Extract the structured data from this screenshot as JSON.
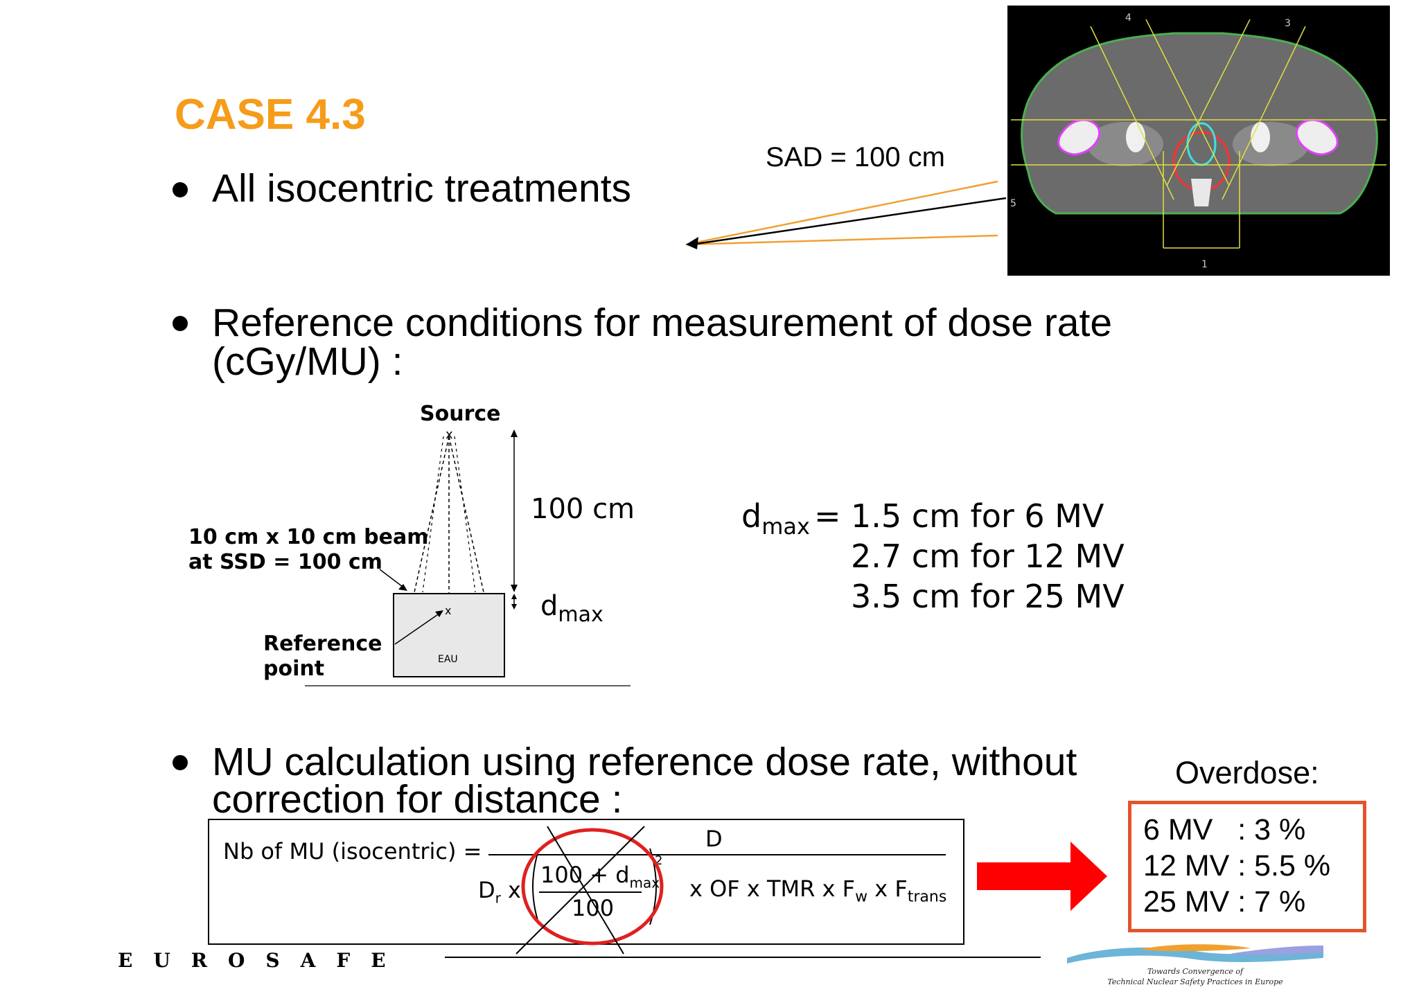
{
  "title": "CASE 4.3",
  "bullets": [
    {
      "line1": "All isocentric treatments",
      "line2": ""
    },
    {
      "line1": "Reference conditions for measurement of dose rate",
      "line2": "(cGy/MU) :"
    },
    {
      "line1": "MU calculation using reference dose rate, without",
      "line2": "correction for distance :"
    }
  ],
  "sad_label": "SAD = 100 cm",
  "ct_beam_numbers": [
    "4",
    "3",
    "5",
    "1"
  ],
  "diagram": {
    "source": "Source",
    "distance": "100 cm",
    "beam_line1": "10 cm x 10 cm beam",
    "beam_line2": "at SSD = 100 cm",
    "ref_line1": "Reference",
    "ref_line2": "point",
    "phantom": "EAU",
    "dmax": "d",
    "dmax_sub": "max"
  },
  "dmax_values": {
    "label": "d",
    "label_sub": "max",
    "equals": "=",
    "lines": [
      "1.5 cm for 6 MV",
      "2.7 cm for 12 MV",
      "3.5 cm for 25 MV"
    ]
  },
  "formula": {
    "lhs": "Nb of MU (isocentric) =",
    "numerator": "D",
    "dr": "D",
    "dr_sub": "r",
    "times": "x",
    "frac_top": "100 + d",
    "frac_top_sub": "max",
    "frac_bottom": "100",
    "exponent": "2",
    "rest": "x OF x TMR x F",
    "fw_sub": "w",
    "rest2": "x F",
    "ftrans_sub": "trans"
  },
  "overdose": {
    "label": "Overdose:",
    "lines": [
      "6 MV   : 3 %",
      "12 MV : 5.5 %",
      "25 MV : 7 %"
    ]
  },
  "footer": {
    "brand": "EUROSAFE",
    "logo_line1": "Towards Convergence of",
    "logo_line2": "Technical Nuclear Safety Practices in Europe"
  },
  "colors": {
    "title": "#f59c1a",
    "beam_lines": "#f0a030",
    "arrow": "#ff0000",
    "circle": "#e02020",
    "overdose_border": "#e4532c"
  }
}
